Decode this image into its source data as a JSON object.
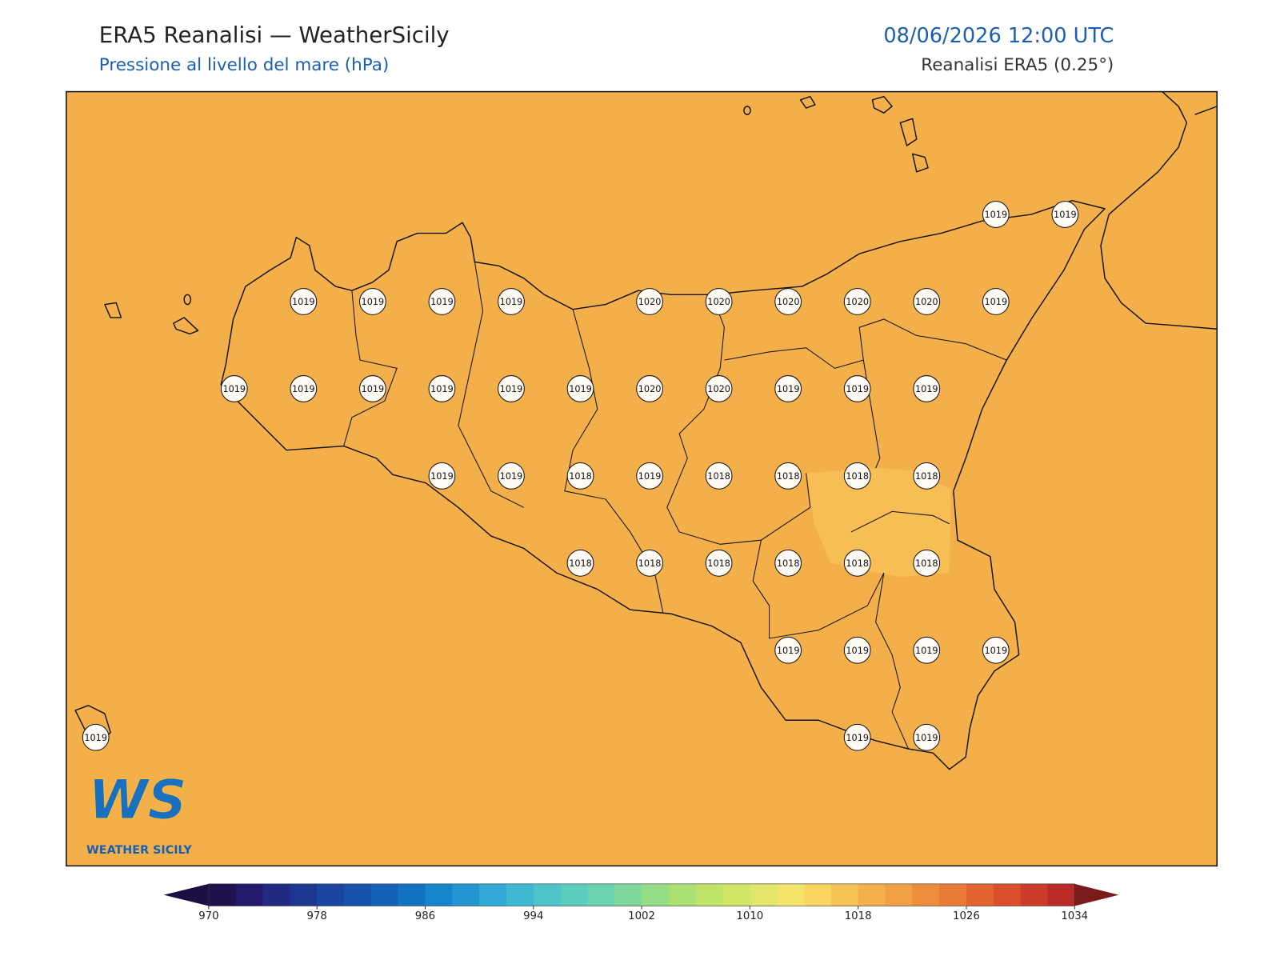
{
  "header": {
    "title": "ERA5 Reanalisi — WeatherSicily",
    "subtitle": "Pressione al livello del mare (hPa)",
    "datetime": "08/06/2026 12:00 UTC",
    "source": "Reanalisi ERA5 (0.25°)"
  },
  "map": {
    "pressure_grid": [
      [
        null,
        null,
        null,
        null,
        null,
        null,
        null,
        null,
        null,
        null,
        null,
        null,
        null,
        1019,
        1019
      ],
      [
        null,
        null,
        null,
        1019,
        1019,
        1019,
        1019,
        null,
        1020,
        1020,
        1020,
        1020,
        1020,
        1019,
        null
      ],
      [
        null,
        null,
        1019,
        1019,
        1019,
        1019,
        1019,
        1019,
        1020,
        1020,
        1019,
        1019,
        1019,
        null,
        null
      ],
      [
        null,
        null,
        null,
        null,
        null,
        1019,
        1019,
        1018,
        1019,
        1018,
        1018,
        1018,
        1018,
        null,
        null
      ],
      [
        null,
        null,
        null,
        null,
        null,
        null,
        null,
        1018,
        1018,
        1018,
        1018,
        1018,
        1018,
        null,
        null
      ],
      [
        null,
        null,
        null,
        null,
        null,
        null,
        null,
        null,
        null,
        null,
        1019,
        1019,
        1019,
        1019,
        null
      ],
      [
        1019,
        null,
        null,
        null,
        null,
        null,
        null,
        null,
        null,
        null,
        null,
        1019,
        1019,
        null,
        null
      ]
    ]
  },
  "logo": {
    "mark": "WS",
    "name": "WEATHER SICILY"
  },
  "colorbar": {
    "lim": [
      970,
      1034
    ],
    "ticks": [
      970,
      978,
      986,
      994,
      1002,
      1010,
      1018,
      1026,
      1034
    ],
    "under_color": "#1a0f40",
    "over_color": "#7a1a1a",
    "colors": [
      "#21124f",
      "#241a6b",
      "#1f2a80",
      "#1c3790",
      "#1a45a0",
      "#1753ad",
      "#1462b8",
      "#1273c3",
      "#1585cc",
      "#2396d2",
      "#32a8d4",
      "#3fb8d2",
      "#4dc4ca",
      "#5bcdbf",
      "#6ad3b0",
      "#7ed89c",
      "#95dc86",
      "#abe172",
      "#bfe466",
      "#d2e666",
      "#e2e66b",
      "#f5e46a",
      "#f9d45f",
      "#f6c455",
      "#f4b04b",
      "#f1a043",
      "#ee8e3c",
      "#ea7b36",
      "#e46530",
      "#da502d",
      "#cb3c2b",
      "#b92b29"
    ]
  }
}
